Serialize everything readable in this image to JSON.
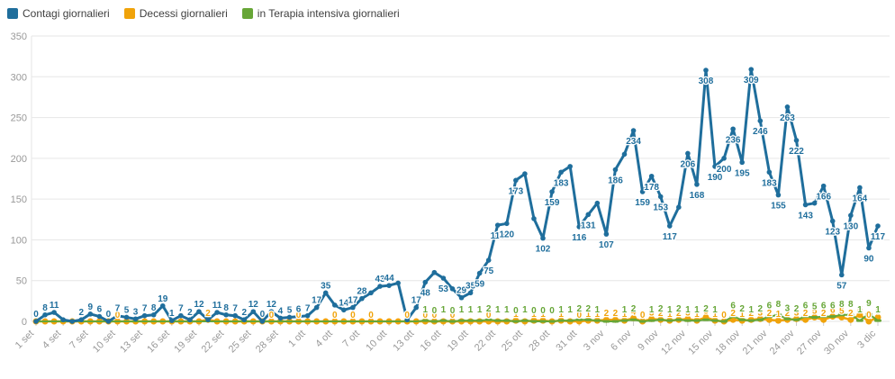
{
  "legend": {
    "items": [
      {
        "label": "Contagi giornalieri",
        "color": "#1f6e9c"
      },
      {
        "label": "Decessi giornalieri",
        "color": "#f0a30a"
      },
      {
        "label": "in Terapia intensiva giornalieri",
        "color": "#67a637"
      }
    ]
  },
  "chart_data": {
    "type": "line",
    "title": "",
    "xlabel": "",
    "ylabel": "",
    "n_points": 94,
    "x_tick_every": 3,
    "x_tick_labels": [
      "1 set",
      "4 set",
      "7 set",
      "10 set",
      "13 set",
      "16 set",
      "19 set",
      "22 set",
      "25 set",
      "28 set",
      "1 ott",
      "4 ott",
      "7 ott",
      "10 ott",
      "13 ott",
      "16 ott",
      "19 ott",
      "22 ott",
      "25 ott",
      "28 ott",
      "31 ott",
      "3 nov",
      "6 nov",
      "9 nov",
      "12 nov",
      "15 nov",
      "18 nov",
      "21 nov",
      "24 nov",
      "27 nov",
      "30 nov",
      "3 dic"
    ],
    "ylim": [
      0,
      350
    ],
    "y_ticks": [
      0,
      50,
      100,
      150,
      200,
      250,
      300,
      350
    ],
    "grid": "horizontal-light",
    "legend_position": "top-left",
    "axis_text_color": "#999999",
    "grid_color": "#e6e6e6",
    "series": [
      {
        "name": "Contagi giornalieri",
        "color": "#1f6e9c",
        "marker": "circle",
        "values": [
          0,
          8,
          11,
          2,
          0,
          2,
          9,
          6,
          0,
          7,
          5,
          3,
          7,
          8,
          19,
          1,
          7,
          2,
          12,
          2,
          11,
          8,
          7,
          2,
          12,
          0,
          12,
          4,
          5,
          6,
          7,
          17,
          35,
          20,
          14,
          17,
          28,
          35,
          43,
          44,
          47,
          2,
          17,
          48,
          60,
          53,
          40,
          29,
          35,
          59,
          75,
          118,
          120,
          173,
          181,
          126,
          102,
          159,
          183,
          190,
          116,
          131,
          145,
          107,
          186,
          205,
          234,
          159,
          178,
          153,
          117,
          140,
          206,
          168,
          308,
          190,
          200,
          236,
          195,
          309,
          246,
          183,
          155,
          263,
          222,
          143,
          145,
          166,
          123,
          57,
          130,
          164,
          90,
          117
        ],
        "point_labels": [
          "0",
          "8",
          "11",
          null,
          null,
          "2",
          "9",
          "6",
          "0",
          "7",
          "5",
          "3",
          "7",
          "8",
          "19",
          "1",
          "7",
          "2",
          "12",
          null,
          "11",
          "8",
          "7",
          "2",
          "12",
          "0",
          "12",
          "4",
          "5",
          "6",
          "7",
          "17",
          "35",
          null,
          "14",
          "17",
          "28",
          null,
          "43",
          "44",
          null,
          null,
          "17",
          "48",
          null,
          "53",
          null,
          "29",
          "35",
          "59",
          "75",
          "118",
          "120",
          "173",
          null,
          null,
          "102",
          "159",
          "183",
          null,
          "116",
          "131",
          null,
          "107",
          "186",
          null,
          "234",
          "159",
          "178",
          "153",
          "117",
          null,
          "206",
          "168",
          "308",
          "190",
          "200",
          "236",
          "195",
          "309",
          "246",
          "183",
          "155",
          "263",
          "222",
          "143",
          null,
          "166",
          "123",
          "57",
          "130",
          "164",
          "90",
          "117"
        ]
      },
      {
        "name": "Decessi giornalieri",
        "color": "#f0a30a",
        "marker": "circle",
        "values": [
          0,
          0,
          0,
          0,
          0,
          0,
          0,
          0,
          0,
          0,
          0,
          0,
          0,
          0,
          0,
          0,
          0,
          0,
          0,
          2,
          0,
          0,
          0,
          0,
          0,
          0,
          0,
          0,
          0,
          0,
          0,
          0,
          0,
          0,
          0,
          0,
          0,
          0,
          0,
          0,
          0,
          0,
          0,
          0,
          0,
          0,
          0,
          0,
          0,
          0,
          0,
          0,
          0,
          1,
          0,
          1,
          1,
          0,
          1,
          0,
          0,
          1,
          1,
          2,
          2,
          1,
          4,
          0,
          3,
          2,
          1,
          2,
          3,
          1,
          5,
          1,
          0,
          2,
          1,
          2,
          3,
          2,
          1,
          2,
          3,
          2,
          5,
          2,
          6,
          5,
          2,
          8,
          0,
          5
        ],
        "point_labels": [
          null,
          null,
          null,
          null,
          null,
          null,
          null,
          null,
          null,
          "0",
          null,
          null,
          null,
          null,
          null,
          null,
          null,
          null,
          null,
          "2",
          null,
          null,
          null,
          null,
          null,
          null,
          "0",
          null,
          null,
          "0",
          null,
          null,
          null,
          "0",
          null,
          "0",
          null,
          "0",
          null,
          null,
          null,
          "0",
          null,
          "0",
          "0",
          null,
          "0",
          null,
          null,
          null,
          "0",
          null,
          null,
          "1",
          null,
          "1",
          "1",
          null,
          "1",
          null,
          "0",
          "1",
          "1",
          "2",
          "2",
          "1",
          "4",
          "0",
          "3",
          "2",
          "1",
          "2",
          "3",
          "1",
          "5",
          "1",
          "0",
          "2",
          "1",
          "2",
          "3",
          "2",
          "1",
          "2",
          "3",
          "2",
          "5",
          "2",
          "6",
          "5",
          "2",
          "8",
          "0",
          "5"
        ]
      },
      {
        "name": "in Terapia intensiva giornalieri",
        "color": "#67a637",
        "marker": "dash",
        "values": [
          0,
          0,
          0,
          0,
          0,
          0,
          0,
          0,
          0,
          0,
          0,
          0,
          0,
          0,
          0,
          0,
          0,
          0,
          0,
          0,
          0,
          0,
          0,
          0,
          0,
          0,
          0,
          0,
          0,
          0,
          0,
          0,
          0,
          0,
          0,
          0,
          0,
          0,
          0,
          0,
          0,
          0,
          0,
          1,
          0,
          1,
          0,
          1,
          1,
          1,
          2,
          1,
          1,
          0,
          1,
          0,
          0,
          0,
          1,
          1,
          2,
          2,
          1,
          0,
          0,
          1,
          2,
          0,
          1,
          2,
          1,
          2,
          1,
          1,
          2,
          1,
          0,
          6,
          2,
          1,
          2,
          6,
          8,
          3,
          2,
          6,
          5,
          6,
          6,
          8,
          8,
          1,
          9,
          1
        ],
        "point_labels": [
          null,
          null,
          null,
          null,
          null,
          null,
          null,
          null,
          null,
          null,
          null,
          null,
          null,
          null,
          null,
          null,
          null,
          null,
          null,
          null,
          null,
          null,
          null,
          null,
          null,
          null,
          null,
          null,
          null,
          null,
          null,
          null,
          null,
          null,
          null,
          null,
          null,
          null,
          null,
          null,
          null,
          null,
          null,
          "1",
          "0",
          "1",
          "0",
          "1",
          "1",
          "1",
          "2",
          "1",
          "1",
          "0",
          "1",
          "0",
          "0",
          "0",
          "1",
          "1",
          "2",
          "2",
          "1",
          null,
          null,
          "1",
          "2",
          null,
          "1",
          "2",
          "1",
          "2",
          "1",
          "1",
          "2",
          "1",
          null,
          "6",
          "2",
          "1",
          "2",
          "6",
          "8",
          "3",
          "2",
          "6",
          "5",
          "6",
          "6",
          "8",
          "8",
          "1",
          "9",
          "1"
        ]
      }
    ]
  }
}
